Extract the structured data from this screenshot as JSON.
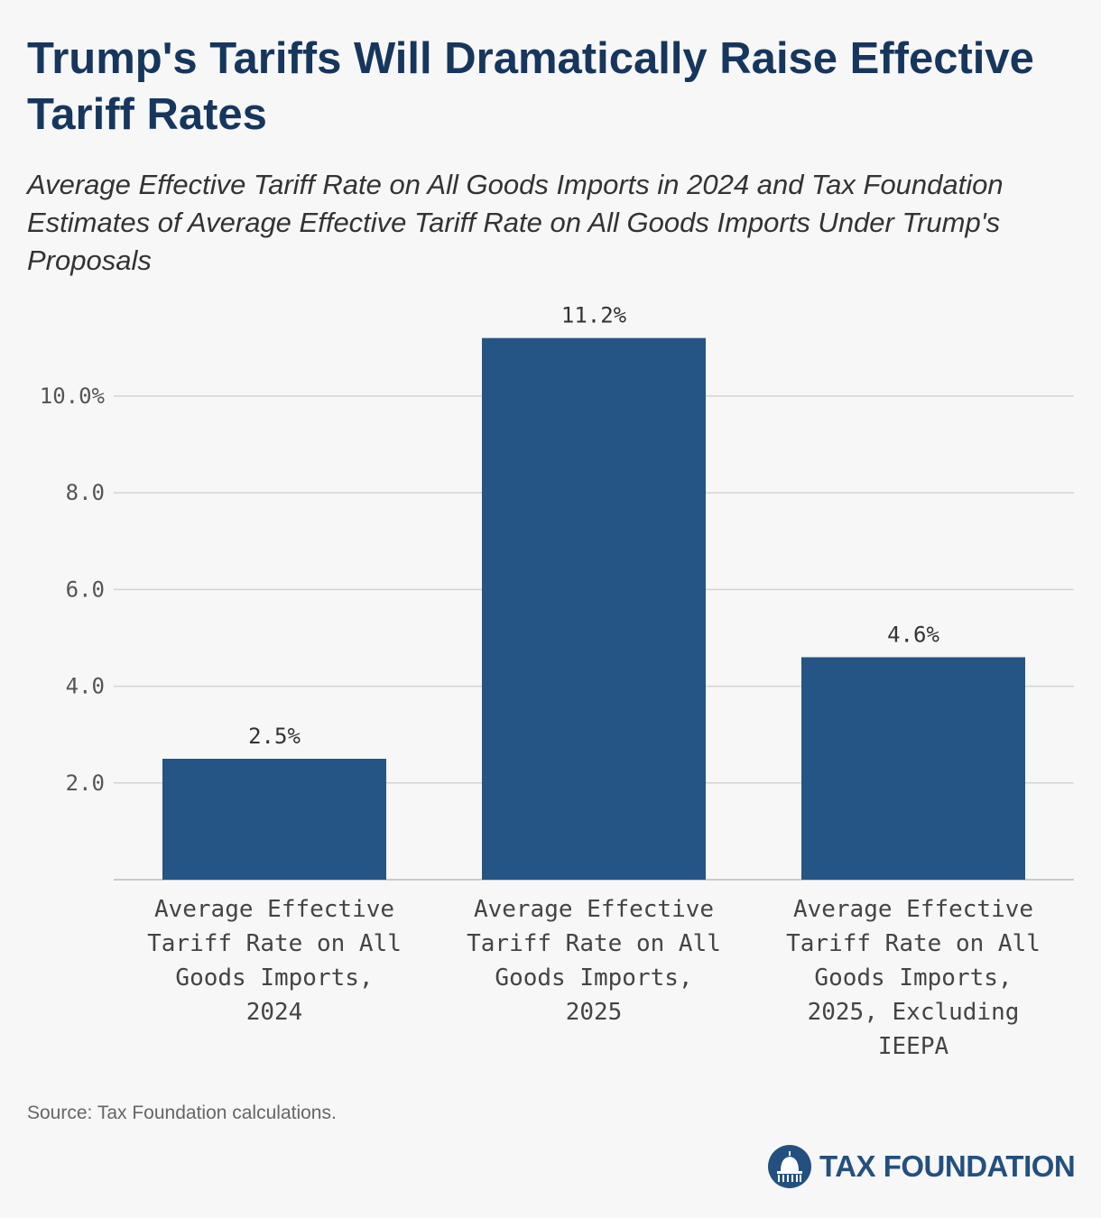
{
  "title": "Trump's Tariffs Will Dramatically Raise Effective Tariff Rates",
  "subtitle": "Average Effective Tariff Rate on All Goods Imports in 2024 and Tax Foundation Estimates of Average Effective Tariff Rate on All Goods Imports Under Trump's Proposals",
  "source": "Source: Tax Foundation calculations.",
  "logo": {
    "text": "TAX FOUNDATION",
    "icon": "capitol-dome-icon"
  },
  "colors": {
    "bar": "#245584",
    "title": "#17365d",
    "grid": "#d4d4d4"
  },
  "chart_data": {
    "type": "bar",
    "categories": [
      [
        "Average Effective",
        "Tariff Rate on All",
        "Goods Imports,",
        "2024"
      ],
      [
        "Average Effective",
        "Tariff Rate on All",
        "Goods Imports,",
        "2025"
      ],
      [
        "Average Effective",
        "Tariff Rate on All",
        "Goods Imports,",
        "2025, Excluding",
        "IEEPA"
      ]
    ],
    "values": [
      2.5,
      11.2,
      4.6
    ],
    "data_labels": [
      "2.5%",
      "11.2%",
      "4.6%"
    ],
    "yticks": [
      2,
      4,
      6,
      8,
      10
    ],
    "ytick_labels": [
      "2.0",
      "4.0",
      "6.0",
      "8.0",
      "10.0%"
    ],
    "ylim": [
      0,
      11.2
    ],
    "grid": true,
    "legend": "none"
  }
}
